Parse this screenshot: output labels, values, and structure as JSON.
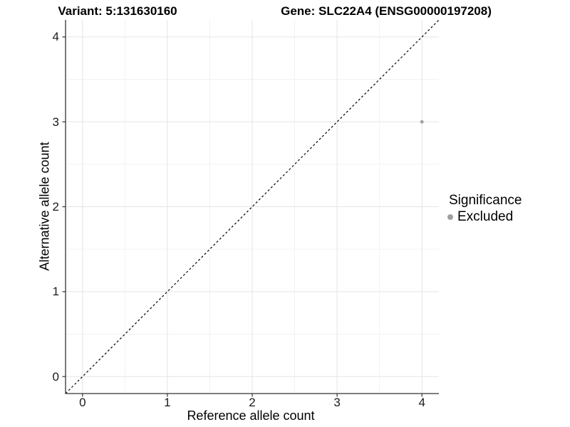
{
  "chart_data": {
    "type": "scatter",
    "title_left": "Variant: 5:131630160",
    "title_right": "Gene: SLC22A4 (ENSG00000197208)",
    "xlabel": "Reference allele count",
    "ylabel": "Alternative allele count",
    "xlim": [
      -0.2,
      4.2
    ],
    "ylim": [
      -0.2,
      4.2
    ],
    "x_ticks": [
      0,
      1,
      2,
      3,
      4
    ],
    "y_ticks": [
      0,
      1,
      2,
      3,
      4
    ],
    "minor_ticks": [
      0.5,
      1.5,
      2.5,
      3.5
    ],
    "grid": "major+minor",
    "reference_line": {
      "type": "identity",
      "style": "dashed"
    },
    "points": [
      {
        "x": 4,
        "y": 3,
        "significance": "Excluded"
      }
    ],
    "legend": {
      "title": "Significance",
      "position": "right",
      "items": [
        {
          "label": "Excluded",
          "color": "#a0a0a0"
        }
      ]
    },
    "colors": {
      "point": "#a0a0a0",
      "grid_major": "#e4e4e4",
      "grid_minor": "#f2f2f2",
      "axis_line": "#333333",
      "tick_mark": "#333333",
      "reference_line": "#000000",
      "text": "#000000"
    }
  }
}
